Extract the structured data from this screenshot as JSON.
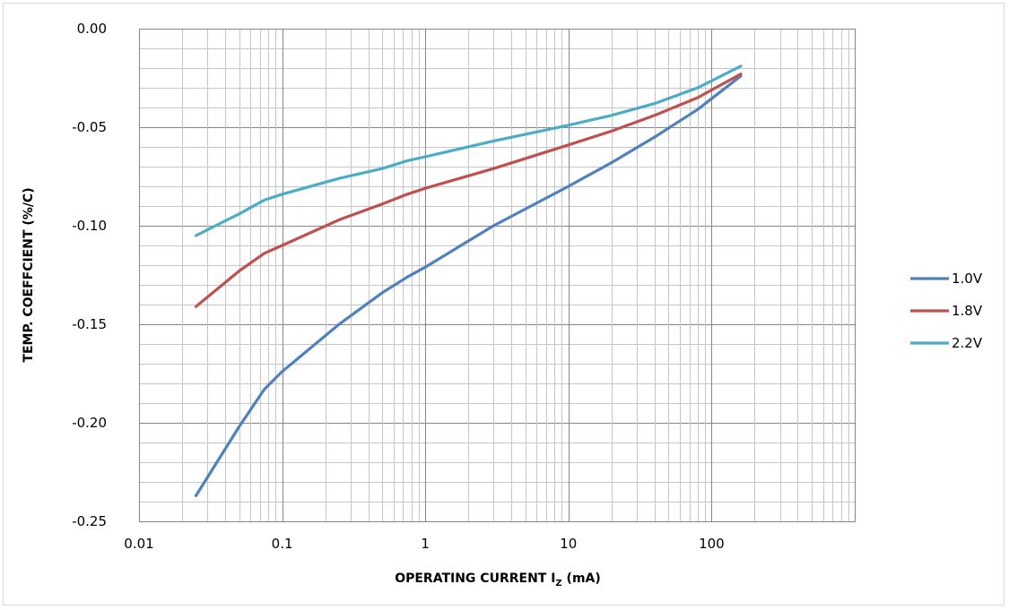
{
  "chart_data": {
    "type": "line",
    "title": "",
    "xlabel": "OPERATING CURRENT I",
    "xlabel_subscript": "Z",
    "xlabel_suffix": " (mA)",
    "ylabel": "TEMP. COEFFCIENT (%/C)",
    "x_scale": "log",
    "xlim": [
      0.01,
      1000
    ],
    "ylim": [
      -0.25,
      0.0
    ],
    "x_ticks": [
      {
        "value": 0.01,
        "label": "0.01"
      },
      {
        "value": 0.1,
        "label": "0.1"
      },
      {
        "value": 1,
        "label": "1"
      },
      {
        "value": 10,
        "label": "10"
      },
      {
        "value": 100,
        "label": "100"
      }
    ],
    "y_ticks": [
      {
        "value": 0.0,
        "label": "0.00"
      },
      {
        "value": -0.05,
        "label": "-0.05"
      },
      {
        "value": -0.1,
        "label": "-0.10"
      },
      {
        "value": -0.15,
        "label": "-0.15"
      },
      {
        "value": -0.2,
        "label": "-0.20"
      },
      {
        "value": -0.25,
        "label": "-0.25"
      }
    ],
    "grid": true,
    "legend_position": "right",
    "series": [
      {
        "name": "1.0V",
        "color": "#4f81bd",
        "x": [
          0.025,
          0.05,
          0.075,
          0.1,
          0.25,
          0.5,
          0.75,
          1,
          3,
          10,
          20,
          40,
          80,
          160
        ],
        "y": [
          -0.237,
          -0.202,
          -0.183,
          -0.174,
          -0.15,
          -0.134,
          -0.126,
          -0.121,
          -0.1,
          -0.08,
          -0.068,
          -0.055,
          -0.041,
          -0.024
        ]
      },
      {
        "name": "1.8V",
        "color": "#c0504d",
        "x": [
          0.025,
          0.05,
          0.075,
          0.1,
          0.25,
          0.5,
          0.75,
          1,
          3,
          10,
          20,
          40,
          80,
          160
        ],
        "y": [
          -0.141,
          -0.123,
          -0.114,
          -0.11,
          -0.097,
          -0.089,
          -0.084,
          -0.081,
          -0.071,
          -0.059,
          -0.052,
          -0.044,
          -0.035,
          -0.023
        ]
      },
      {
        "name": "2.2V",
        "color": "#4bacc6",
        "x": [
          0.025,
          0.05,
          0.075,
          0.1,
          0.25,
          0.5,
          0.75,
          1,
          3,
          10,
          20,
          40,
          80,
          160
        ],
        "y": [
          -0.105,
          -0.094,
          -0.087,
          -0.084,
          -0.076,
          -0.071,
          -0.067,
          -0.065,
          -0.057,
          -0.049,
          -0.044,
          -0.038,
          -0.03,
          -0.019
        ]
      }
    ]
  }
}
